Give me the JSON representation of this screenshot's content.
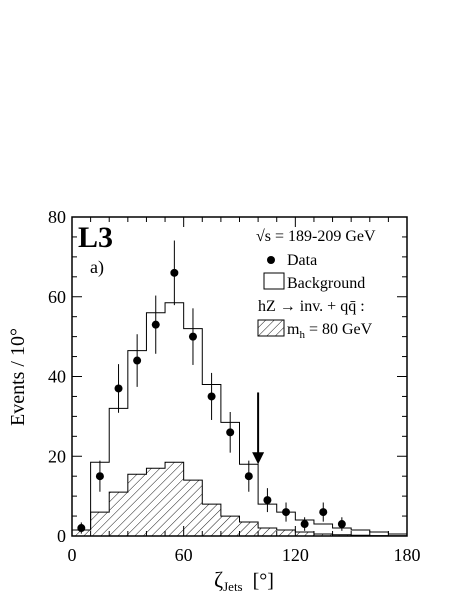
{
  "chart_data": {
    "type": "histogram",
    "experiment_label": "L3",
    "panel_label": "a)",
    "energy_label": "√s = 189-209 GeV",
    "xlabel_symbol": "ζ",
    "xlabel_sub": "Jets",
    "xlabel_unit": "[°]",
    "ylabel": "Events / 10°",
    "xlim": [
      0,
      180
    ],
    "ylim": [
      0,
      80
    ],
    "xticks": [
      0,
      60,
      120,
      180
    ],
    "yticks": [
      0,
      20,
      40,
      60,
      80
    ],
    "bin_edges": [
      0,
      10,
      20,
      30,
      40,
      50,
      60,
      70,
      80,
      90,
      100,
      110,
      120,
      130,
      140,
      150,
      160,
      170,
      180
    ],
    "background": [
      1.5,
      18.5,
      32,
      46.5,
      56,
      58.5,
      52,
      38,
      28.5,
      18,
      8,
      6,
      4,
      3,
      2,
      1.5,
      1,
      0.5
    ],
    "signal": [
      1.5,
      6,
      11,
      15.5,
      17,
      18.5,
      14,
      8,
      5,
      3.5,
      2,
      1.5,
      1,
      0.5,
      0.3,
      0.2,
      0.1,
      0.05
    ],
    "data": {
      "x": [
        5,
        15,
        25,
        35,
        45,
        55,
        65,
        75,
        85,
        95,
        105,
        115,
        125,
        135,
        145
      ],
      "y": [
        2,
        15,
        37,
        44,
        53,
        66,
        50,
        35,
        26,
        15,
        9,
        6,
        3,
        6,
        3
      ],
      "err": [
        1.4,
        3.9,
        6.1,
        6.6,
        7.3,
        8.1,
        7.1,
        5.9,
        5.1,
        3.9,
        3,
        2.4,
        1.7,
        2.4,
        1.7
      ]
    },
    "arrow": {
      "x": 100,
      "y_from": 36,
      "y_to": 18
    },
    "legend": {
      "placement": "top-right",
      "data_label": "Data",
      "background_label": "Background",
      "signal_title": "hZ → inv. + qq̄ :",
      "signal_mass": "m",
      "signal_mass_sub": "h",
      "signal_mass_value": " = 80 GeV"
    }
  }
}
